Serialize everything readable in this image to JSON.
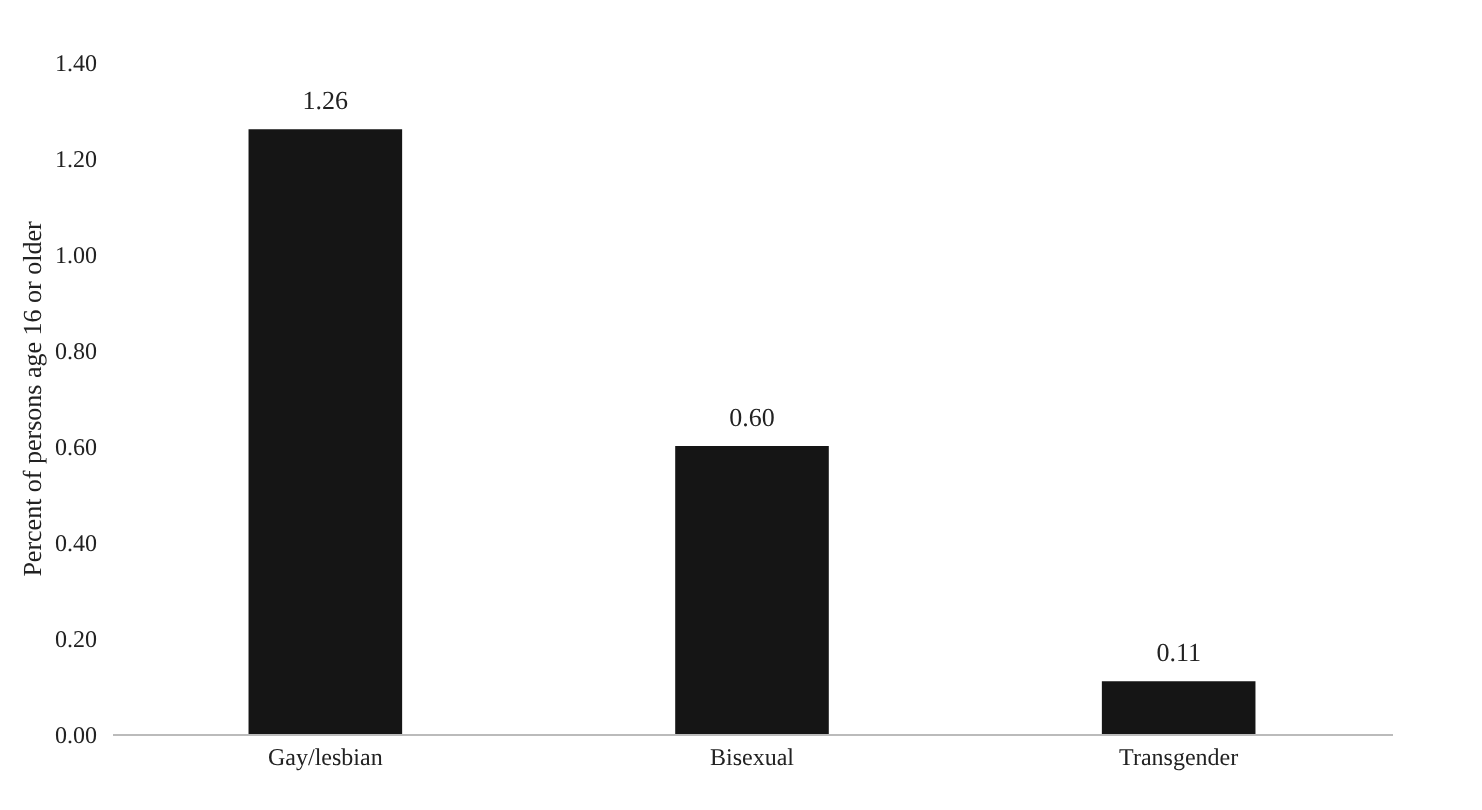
{
  "chart_data": {
    "type": "bar",
    "ylabel": "Percent of persons age 16 or older",
    "categories": [
      "Gay/lesbian",
      "Bisexual",
      "Transgender"
    ],
    "values": [
      1.26,
      0.6,
      0.11
    ],
    "value_labels": [
      "1.26",
      "0.60",
      "0.11"
    ],
    "color": "#151515",
    "ylim": [
      0,
      1.4
    ],
    "yticks": [
      {
        "value": 0,
        "label": "0.00"
      },
      {
        "value": 0.2,
        "label": "0.20"
      },
      {
        "value": 0.4,
        "label": "0.40"
      },
      {
        "value": 0.6,
        "label": "0.60"
      },
      {
        "value": 0.8,
        "label": "0.80"
      },
      {
        "value": 1.0,
        "label": "1.00"
      },
      {
        "value": 1.2,
        "label": "1.20"
      },
      {
        "value": 1.4,
        "label": "1.40"
      }
    ],
    "grid": false
  }
}
